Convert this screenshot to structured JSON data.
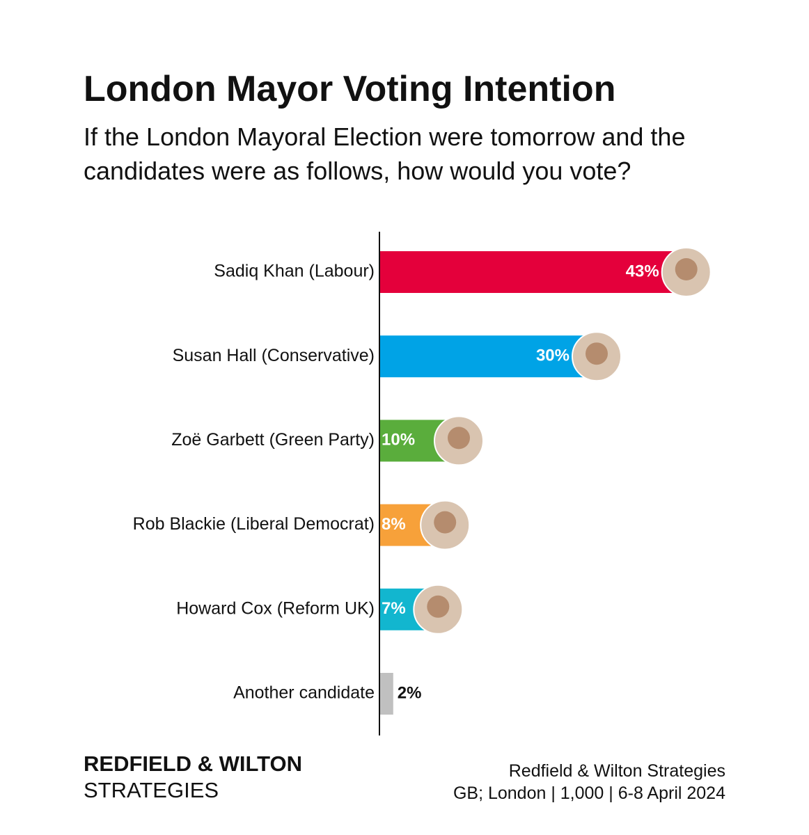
{
  "chart_data": {
    "type": "bar",
    "orientation": "horizontal",
    "title": "London Mayor Voting Intention",
    "subtitle": "If the London Mayoral Election were tomorrow and the candidates were as follows, how would you vote?",
    "categories": [
      "Sadiq Khan (Labour)",
      "Susan Hall (Conservative)",
      "Zoë Garbett (Green Party)",
      "Rob Blackie (Liberal Democrat)",
      "Howard Cox (Reform UK)",
      "Another candidate"
    ],
    "values": [
      43,
      30,
      10,
      8,
      7,
      2
    ],
    "value_labels": [
      "43%",
      "30%",
      "10%",
      "8%",
      "7%",
      "2%"
    ],
    "colors": [
      "#e4003b",
      "#00a3e6",
      "#5aad3c",
      "#f7a13a",
      "#12b6cf",
      "#c0c0c0"
    ],
    "brand": [
      "REDFIELD & WILTON",
      "STRATEGIES"
    ],
    "source": [
      "Redfield & Wilton Strategies",
      "GB; London | 1,000 | 6-8 April 2024"
    ]
  }
}
